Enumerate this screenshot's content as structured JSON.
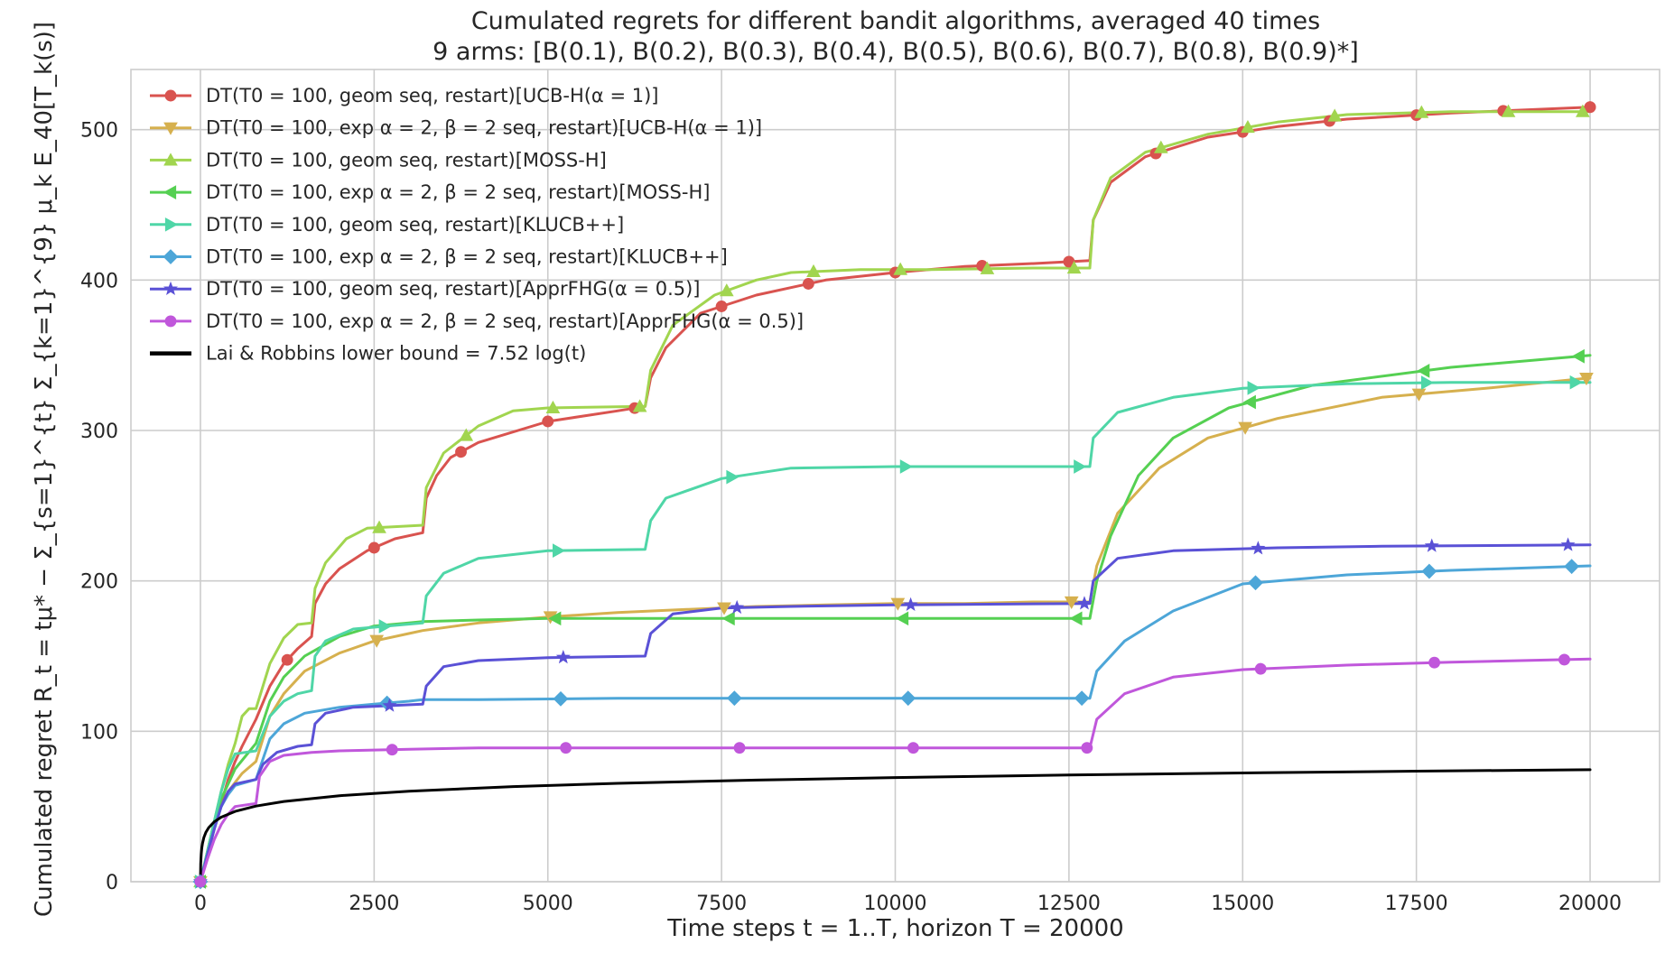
{
  "chart_data": {
    "type": "line",
    "title": "Cumulated regrets for different bandit algorithms, averaged 40 times",
    "subtitle": "9 arms: [B(0.1), B(0.2), B(0.3), B(0.4), B(0.5), B(0.6), B(0.7), B(0.8), B(0.9)*]",
    "xlabel": "Time steps t = 1..T, horizon T = 20000",
    "ylabel": "Cumulated regret R_t = tμ* − Σ_{s=1}^{t} Σ_{k=1}^{9} μ_k E_40[T_k(s)]",
    "xlim": [
      -1000,
      21000
    ],
    "ylim": [
      0,
      540
    ],
    "x_ticks": [
      0,
      2500,
      5000,
      7500,
      10000,
      12500,
      15000,
      17500,
      20000
    ],
    "y_ticks": [
      0,
      100,
      200,
      300,
      400,
      500
    ],
    "grid": true,
    "legend_position": "top-left",
    "series": [
      {
        "name": "DT(T0 = 100, geom seq, restart)[UCB-H(α = 1)]",
        "color": "#d9534f",
        "marker": "circle",
        "marker_every": 1250,
        "marker_offset": 1,
        "points": [
          [
            0,
            0
          ],
          [
            100,
            18
          ],
          [
            200,
            35
          ],
          [
            300,
            52
          ],
          [
            400,
            68
          ],
          [
            500,
            80
          ],
          [
            600,
            90
          ],
          [
            800,
            108
          ],
          [
            1000,
            130
          ],
          [
            1200,
            145
          ],
          [
            1400,
            155
          ],
          [
            1600,
            163
          ],
          [
            1650,
            185
          ],
          [
            1800,
            198
          ],
          [
            2000,
            208
          ],
          [
            2400,
            220
          ],
          [
            2800,
            228
          ],
          [
            3200,
            232
          ],
          [
            3250,
            255
          ],
          [
            3400,
            270
          ],
          [
            3600,
            282
          ],
          [
            4000,
            292
          ],
          [
            5000,
            306
          ],
          [
            6000,
            313
          ],
          [
            6400,
            316
          ],
          [
            6480,
            335
          ],
          [
            6700,
            355
          ],
          [
            7200,
            378
          ],
          [
            8000,
            390
          ],
          [
            9000,
            400
          ],
          [
            10000,
            405
          ],
          [
            11000,
            409
          ],
          [
            12000,
            411
          ],
          [
            12800,
            413
          ],
          [
            12850,
            440
          ],
          [
            13100,
            465
          ],
          [
            13600,
            482
          ],
          [
            14500,
            495
          ],
          [
            15500,
            502
          ],
          [
            16500,
            507
          ],
          [
            18000,
            511
          ],
          [
            20000,
            515
          ]
        ]
      },
      {
        "name": "DT(T0 = 100, exp α = 2, β = 2 seq, restart)[UCB-H(α = 1)]",
        "color": "#d6b04e",
        "marker": "triangle-down",
        "marker_every": 2500,
        "marker_offset": 1,
        "points": [
          [
            0,
            0
          ],
          [
            100,
            20
          ],
          [
            200,
            40
          ],
          [
            400,
            60
          ],
          [
            600,
            72
          ],
          [
            800,
            80
          ],
          [
            1000,
            110
          ],
          [
            1200,
            125
          ],
          [
            1500,
            140
          ],
          [
            2000,
            152
          ],
          [
            2500,
            160
          ],
          [
            3000,
            165
          ],
          [
            3200,
            167
          ],
          [
            4000,
            172
          ],
          [
            5000,
            176
          ],
          [
            6000,
            179
          ],
          [
            7000,
            181
          ],
          [
            8000,
            183
          ],
          [
            9000,
            184
          ],
          [
            10000,
            185
          ],
          [
            11000,
            185
          ],
          [
            12000,
            186
          ],
          [
            12800,
            186
          ],
          [
            12900,
            210
          ],
          [
            13200,
            245
          ],
          [
            13800,
            275
          ],
          [
            14500,
            295
          ],
          [
            15500,
            308
          ],
          [
            17000,
            322
          ],
          [
            18500,
            328
          ],
          [
            20000,
            335
          ]
        ]
      },
      {
        "name": "DT(T0 = 100, geom seq, restart)[MOSS-H]",
        "color": "#a1d54f",
        "marker": "triangle-up",
        "marker_every": 1250,
        "marker_offset": 2,
        "points": [
          [
            0,
            0
          ],
          [
            100,
            20
          ],
          [
            200,
            40
          ],
          [
            300,
            60
          ],
          [
            400,
            78
          ],
          [
            500,
            92
          ],
          [
            600,
            110
          ],
          [
            700,
            115
          ],
          [
            800,
            115
          ],
          [
            1000,
            145
          ],
          [
            1200,
            162
          ],
          [
            1400,
            171
          ],
          [
            1600,
            172
          ],
          [
            1650,
            195
          ],
          [
            1800,
            212
          ],
          [
            2100,
            228
          ],
          [
            2400,
            235
          ],
          [
            3200,
            237
          ],
          [
            3250,
            262
          ],
          [
            3500,
            285
          ],
          [
            4000,
            303
          ],
          [
            4500,
            313
          ],
          [
            5000,
            315
          ],
          [
            6400,
            316
          ],
          [
            6480,
            340
          ],
          [
            6800,
            370
          ],
          [
            7400,
            390
          ],
          [
            8000,
            400
          ],
          [
            8500,
            405
          ],
          [
            9500,
            407
          ],
          [
            10500,
            407
          ],
          [
            12000,
            408
          ],
          [
            12800,
            408
          ],
          [
            12850,
            440
          ],
          [
            13100,
            468
          ],
          [
            13600,
            485
          ],
          [
            14500,
            497
          ],
          [
            15500,
            505
          ],
          [
            16500,
            510
          ],
          [
            18000,
            512
          ],
          [
            20000,
            512
          ]
        ]
      },
      {
        "name": "DT(T0 = 100, exp α = 2, β = 2 seq, restart)[MOSS-H]",
        "color": "#55d052",
        "marker": "triangle-left",
        "marker_every": 2500,
        "marker_offset": 2,
        "points": [
          [
            0,
            0
          ],
          [
            100,
            20
          ],
          [
            200,
            40
          ],
          [
            300,
            55
          ],
          [
            400,
            65
          ],
          [
            500,
            75
          ],
          [
            800,
            92
          ],
          [
            1000,
            120
          ],
          [
            1200,
            136
          ],
          [
            1500,
            150
          ],
          [
            2000,
            163
          ],
          [
            2500,
            170
          ],
          [
            3000,
            172
          ],
          [
            3200,
            173
          ],
          [
            4000,
            174
          ],
          [
            5000,
            175
          ],
          [
            6000,
            175
          ],
          [
            8000,
            175
          ],
          [
            10000,
            175
          ],
          [
            12000,
            175
          ],
          [
            12800,
            175
          ],
          [
            12900,
            200
          ],
          [
            13100,
            230
          ],
          [
            13500,
            270
          ],
          [
            14000,
            295
          ],
          [
            14800,
            315
          ],
          [
            16000,
            330
          ],
          [
            18000,
            342
          ],
          [
            20000,
            350
          ]
        ]
      },
      {
        "name": "DT(T0 = 100, geom seq, restart)[KLUCB++]",
        "color": "#4fd6a7",
        "marker": "triangle-right",
        "marker_every": 2500,
        "marker_offset": 1,
        "points": [
          [
            0,
            0
          ],
          [
            100,
            20
          ],
          [
            200,
            40
          ],
          [
            300,
            60
          ],
          [
            400,
            75
          ],
          [
            500,
            85
          ],
          [
            800,
            87
          ],
          [
            1000,
            110
          ],
          [
            1200,
            120
          ],
          [
            1400,
            125
          ],
          [
            1600,
            127
          ],
          [
            1650,
            150
          ],
          [
            1800,
            160
          ],
          [
            2200,
            168
          ],
          [
            3200,
            172
          ],
          [
            3250,
            190
          ],
          [
            3500,
            205
          ],
          [
            4000,
            215
          ],
          [
            5000,
            220
          ],
          [
            6400,
            221
          ],
          [
            6480,
            240
          ],
          [
            6700,
            255
          ],
          [
            7500,
            268
          ],
          [
            8500,
            275
          ],
          [
            10000,
            276
          ],
          [
            12800,
            276
          ],
          [
            12850,
            295
          ],
          [
            13200,
            312
          ],
          [
            14000,
            322
          ],
          [
            15000,
            328
          ],
          [
            16500,
            331
          ],
          [
            18000,
            332
          ],
          [
            20000,
            332
          ]
        ]
      },
      {
        "name": "DT(T0 = 100, exp α = 2, β = 2 seq, restart)[KLUCB++]",
        "color": "#4da6d8",
        "marker": "diamond",
        "marker_every": 2500,
        "marker_offset": 1,
        "points": [
          [
            0,
            0
          ],
          [
            100,
            18
          ],
          [
            200,
            35
          ],
          [
            300,
            50
          ],
          [
            400,
            58
          ],
          [
            500,
            64
          ],
          [
            800,
            68
          ],
          [
            1000,
            95
          ],
          [
            1200,
            105
          ],
          [
            1500,
            112
          ],
          [
            2000,
            116
          ],
          [
            2500,
            118
          ],
          [
            3000,
            120
          ],
          [
            3200,
            121
          ],
          [
            4000,
            121
          ],
          [
            6000,
            122
          ],
          [
            8000,
            122
          ],
          [
            10000,
            122
          ],
          [
            12800,
            122
          ],
          [
            12900,
            140
          ],
          [
            13300,
            160
          ],
          [
            14000,
            180
          ],
          [
            15000,
            198
          ],
          [
            16500,
            204
          ],
          [
            18000,
            207
          ],
          [
            20000,
            210
          ]
        ]
      },
      {
        "name": "DT(T0 = 100, geom seq, restart)[ApprFHG(α = 0.5)]",
        "color": "#5a51d6",
        "marker": "star",
        "marker_every": 2500,
        "marker_offset": 1,
        "points": [
          [
            0,
            0
          ],
          [
            100,
            18
          ],
          [
            200,
            35
          ],
          [
            300,
            50
          ],
          [
            400,
            60
          ],
          [
            500,
            65
          ],
          [
            800,
            68
          ],
          [
            900,
            78
          ],
          [
            1100,
            86
          ],
          [
            1400,
            90
          ],
          [
            1600,
            91
          ],
          [
            1650,
            105
          ],
          [
            1800,
            112
          ],
          [
            2200,
            116
          ],
          [
            3200,
            118
          ],
          [
            3250,
            130
          ],
          [
            3500,
            143
          ],
          [
            4000,
            147
          ],
          [
            5000,
            149
          ],
          [
            6400,
            150
          ],
          [
            6480,
            165
          ],
          [
            6800,
            178
          ],
          [
            7500,
            182
          ],
          [
            8500,
            183
          ],
          [
            10000,
            184
          ],
          [
            12800,
            185
          ],
          [
            12850,
            200
          ],
          [
            13200,
            215
          ],
          [
            14000,
            220
          ],
          [
            15500,
            222
          ],
          [
            17000,
            223
          ],
          [
            20000,
            224
          ]
        ]
      },
      {
        "name": "DT(T0 = 100, exp α = 2, β = 2 seq, restart)[ApprFHG(α = 0.5)]",
        "color": "#c057db",
        "marker": "circle",
        "marker_every": 2500,
        "marker_offset": 1,
        "points": [
          [
            0,
            0
          ],
          [
            100,
            15
          ],
          [
            200,
            28
          ],
          [
            300,
            38
          ],
          [
            400,
            45
          ],
          [
            500,
            50
          ],
          [
            800,
            52
          ],
          [
            850,
            70
          ],
          [
            1000,
            80
          ],
          [
            1200,
            84
          ],
          [
            1600,
            86
          ],
          [
            2000,
            87
          ],
          [
            3000,
            88
          ],
          [
            4000,
            89
          ],
          [
            6000,
            89
          ],
          [
            8000,
            89
          ],
          [
            10000,
            89
          ],
          [
            12800,
            89
          ],
          [
            12900,
            108
          ],
          [
            13300,
            125
          ],
          [
            14000,
            136
          ],
          [
            15000,
            141
          ],
          [
            16500,
            144
          ],
          [
            18000,
            146
          ],
          [
            20000,
            148
          ]
        ]
      },
      {
        "name": "Lai & Robbins lower bound = 7.52 log(t)",
        "color": "#000000",
        "marker": "none",
        "line_width": 4.5,
        "function": "7.52*log(t)"
      }
    ]
  }
}
